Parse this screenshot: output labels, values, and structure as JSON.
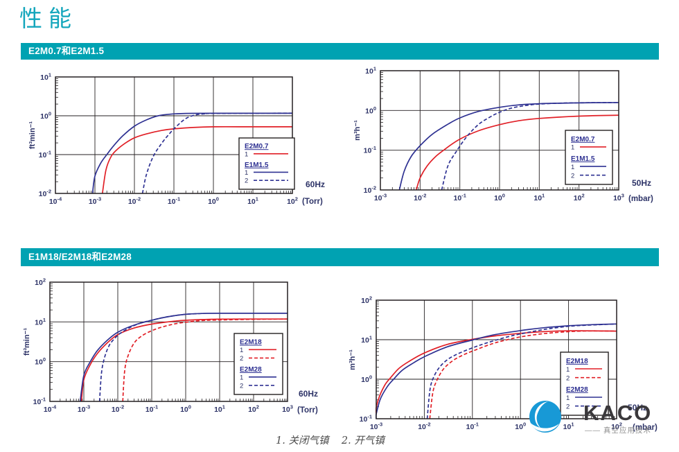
{
  "page": {
    "title": "性能",
    "footnote": "1. 关闭气镇    2. 开气镇"
  },
  "sections": [
    {
      "label": "E2M0.7和E2M1.5"
    },
    {
      "label": "E1M18/E2M18和E2M28"
    }
  ],
  "logo": {
    "text": "KACO",
    "subtitle": "—— 真空应用技术"
  },
  "colors": {
    "teal_bar": "#00a2b2",
    "title_teal": "#14a6bc",
    "curve_red": "#e11f26",
    "curve_blue": "#2e3192",
    "axis_ink": "#231f20",
    "grid": "#231f20",
    "label_navy": "#2d3367",
    "logo_blue": "#1899d6"
  },
  "chart_data": [
    {
      "id": "e2m07-e1m15-60hz",
      "type": "line",
      "section": "E2M0.7和E2M1.5",
      "frequency": "60Hz",
      "x_unit": "(Torr)",
      "ylabel": "ft³min⁻¹",
      "xexp": [
        -4,
        2
      ],
      "yexp": [
        -2,
        1
      ],
      "grid": true,
      "series": [
        {
          "label": "E2M0.7-1",
          "color": "red",
          "dash": false,
          "points": [
            [
              0.00155,
              0.01
            ],
            [
              0.0019,
              0.04
            ],
            [
              0.0025,
              0.085
            ],
            [
              0.0035,
              0.13
            ],
            [
              0.006,
              0.2
            ],
            [
              0.01,
              0.27
            ],
            [
              0.02,
              0.34
            ],
            [
              0.05,
              0.42
            ],
            [
              0.1,
              0.46
            ],
            [
              0.3,
              0.5
            ],
            [
              1,
              0.52
            ],
            [
              10,
              0.52
            ],
            [
              100,
              0.52
            ]
          ]
        },
        {
          "label": "E1M1.5-1",
          "color": "blue",
          "dash": false,
          "points": [
            [
              0.00087,
              0.01
            ],
            [
              0.001,
              0.028
            ],
            [
              0.0014,
              0.06
            ],
            [
              0.002,
              0.1
            ],
            [
              0.003,
              0.17
            ],
            [
              0.005,
              0.3
            ],
            [
              0.01,
              0.54
            ],
            [
              0.02,
              0.78
            ],
            [
              0.04,
              1.0
            ],
            [
              0.08,
              1.1
            ],
            [
              0.2,
              1.15
            ],
            [
              1,
              1.16
            ],
            [
              100,
              1.16
            ]
          ]
        },
        {
          "label": "E1M1.5-2",
          "color": "blue",
          "dash": true,
          "points": [
            [
              0.016,
              0.01
            ],
            [
              0.02,
              0.03
            ],
            [
              0.03,
              0.09
            ],
            [
              0.05,
              0.2
            ],
            [
              0.08,
              0.36
            ],
            [
              0.12,
              0.55
            ],
            [
              0.2,
              0.85
            ],
            [
              0.35,
              1.05
            ],
            [
              0.6,
              1.12
            ],
            [
              1,
              1.15
            ],
            [
              100,
              1.17
            ]
          ]
        }
      ],
      "legend": [
        {
          "title": "E2M0.7",
          "rows": [
            {
              "n": "1",
              "color": "red",
              "dash": false
            }
          ]
        },
        {
          "title": "E1M1.5",
          "rows": [
            {
              "n": "1",
              "color": "blue",
              "dash": false
            },
            {
              "n": "2",
              "color": "blue",
              "dash": true
            }
          ]
        }
      ]
    },
    {
      "id": "e2m07-e1m15-50hz",
      "type": "line",
      "section": "E2M0.7和E2M1.5",
      "frequency": "50Hz",
      "x_unit": "(mbar)",
      "ylabel": "m³h⁻¹",
      "xexp": [
        -3,
        3
      ],
      "yexp": [
        -2,
        1
      ],
      "grid": true,
      "series": [
        {
          "label": "E2M0.7-1",
          "color": "red",
          "dash": false,
          "points": [
            [
              0.008,
              0.01
            ],
            [
              0.01,
              0.02
            ],
            [
              0.015,
              0.04
            ],
            [
              0.025,
              0.07
            ],
            [
              0.05,
              0.12
            ],
            [
              0.1,
              0.19
            ],
            [
              0.3,
              0.31
            ],
            [
              1,
              0.44
            ],
            [
              3,
              0.55
            ],
            [
              10,
              0.63
            ],
            [
              100,
              0.72
            ],
            [
              1000,
              0.76
            ]
          ]
        },
        {
          "label": "E1M1.5-1",
          "color": "blue",
          "dash": false,
          "points": [
            [
              0.003,
              0.01
            ],
            [
              0.004,
              0.03
            ],
            [
              0.006,
              0.07
            ],
            [
              0.01,
              0.13
            ],
            [
              0.02,
              0.25
            ],
            [
              0.05,
              0.45
            ],
            [
              0.1,
              0.65
            ],
            [
              0.3,
              0.95
            ],
            [
              1,
              1.2
            ],
            [
              3,
              1.38
            ],
            [
              10,
              1.48
            ],
            [
              100,
              1.55
            ],
            [
              1000,
              1.58
            ]
          ]
        },
        {
          "label": "E1M1.5-2",
          "color": "blue",
          "dash": true,
          "points": [
            [
              0.035,
              0.01
            ],
            [
              0.05,
              0.04
            ],
            [
              0.08,
              0.09
            ],
            [
              0.15,
              0.22
            ],
            [
              0.3,
              0.45
            ],
            [
              0.6,
              0.7
            ],
            [
              1,
              0.9
            ],
            [
              2,
              1.15
            ],
            [
              5,
              1.35
            ],
            [
              10,
              1.45
            ],
            [
              30,
              1.52
            ],
            [
              100,
              1.56
            ],
            [
              1000,
              1.58
            ]
          ]
        }
      ],
      "legend": [
        {
          "title": "E2M0.7",
          "rows": [
            {
              "n": "1",
              "color": "red",
              "dash": false
            }
          ]
        },
        {
          "title": "E1M1.5",
          "rows": [
            {
              "n": "1",
              "color": "blue",
              "dash": false
            },
            {
              "n": "2",
              "color": "blue",
              "dash": true
            }
          ]
        }
      ]
    },
    {
      "id": "e2m18-e2m28-60hz",
      "type": "line",
      "section": "E1M18/E2M18和E2M28",
      "frequency": "60Hz",
      "x_unit": "(Torr)",
      "ylabel": "ft³min⁻¹",
      "xexp": [
        -4,
        3
      ],
      "yexp": [
        -1,
        2
      ],
      "grid": true,
      "series": [
        {
          "label": "E2M18-1",
          "color": "red",
          "dash": false,
          "points": [
            [
              0.00085,
              0.1
            ],
            [
              0.001,
              0.35
            ],
            [
              0.0015,
              0.8
            ],
            [
              0.0025,
              1.6
            ],
            [
              0.005,
              3.0
            ],
            [
              0.01,
              4.8
            ],
            [
              0.03,
              7.0
            ],
            [
              0.1,
              8.8
            ],
            [
              0.3,
              10.0
            ],
            [
              1,
              11.0
            ],
            [
              10,
              11.7
            ],
            [
              100,
              11.8
            ],
            [
              1000,
              11.8
            ]
          ]
        },
        {
          "label": "E2M28-1",
          "color": "blue",
          "dash": false,
          "points": [
            [
              0.00078,
              0.1
            ],
            [
              0.001,
              0.45
            ],
            [
              0.0015,
              0.95
            ],
            [
              0.0025,
              1.9
            ],
            [
              0.005,
              3.5
            ],
            [
              0.01,
              5.5
            ],
            [
              0.03,
              8.3
            ],
            [
              0.1,
              11.0
            ],
            [
              0.3,
              13.5
            ],
            [
              1,
              15.5
            ],
            [
              3,
              16.3
            ],
            [
              10,
              16.5
            ],
            [
              1000,
              16.5
            ]
          ]
        },
        {
          "label": "E2M28-2",
          "color": "blue",
          "dash": true,
          "points": [
            [
              0.0029,
              0.1
            ],
            [
              0.0033,
              0.5
            ],
            [
              0.004,
              1.2
            ],
            [
              0.0055,
              2.5
            ],
            [
              0.008,
              3.8
            ],
            [
              0.012,
              5.2
            ],
            [
              0.025,
              7.5
            ],
            [
              0.05,
              9.5
            ],
            [
              0.1,
              11.0
            ],
            [
              0.2,
              12.7
            ],
            [
              0.5,
              14.5
            ],
            [
              1,
              15.5
            ],
            [
              3,
              16.3
            ]
          ]
        },
        {
          "label": "E2M18-2",
          "color": "red",
          "dash": true,
          "points": [
            [
              0.014,
              0.1
            ],
            [
              0.016,
              0.6
            ],
            [
              0.02,
              1.4
            ],
            [
              0.03,
              2.9
            ],
            [
              0.05,
              4.4
            ],
            [
              0.1,
              6.0
            ],
            [
              0.2,
              7.4
            ],
            [
              0.5,
              9.0
            ],
            [
              1,
              9.8
            ],
            [
              3,
              10.8
            ],
            [
              10,
              11.2
            ],
            [
              100,
              11.6
            ],
            [
              1000,
              11.8
            ]
          ]
        }
      ],
      "legend": [
        {
          "title": "E2M18",
          "rows": [
            {
              "n": "1",
              "color": "red",
              "dash": false
            },
            {
              "n": "2",
              "color": "red",
              "dash": true
            }
          ]
        },
        {
          "title": "E2M28",
          "rows": [
            {
              "n": "1",
              "color": "blue",
              "dash": false
            },
            {
              "n": "2",
              "color": "blue",
              "dash": true
            }
          ]
        }
      ]
    },
    {
      "id": "e2m18-e2m28-50hz",
      "type": "line",
      "section": "E1M18/E2M18和E2M28",
      "frequency": "50Hz",
      "x_unit": "(mbar)",
      "ylabel": "m³h⁻¹",
      "xexp": [
        -3,
        2
      ],
      "yexp": [
        -1,
        2
      ],
      "grid": true,
      "series": [
        {
          "label": "E2M18-1",
          "color": "red",
          "dash": false,
          "points": [
            [
              0.0009,
              0.1
            ],
            [
              0.0011,
              0.3
            ],
            [
              0.0015,
              0.7
            ],
            [
              0.002,
              1.1
            ],
            [
              0.003,
              1.9
            ],
            [
              0.005,
              2.9
            ],
            [
              0.01,
              4.6
            ],
            [
              0.03,
              7.6
            ],
            [
              0.1,
              10.2
            ],
            [
              0.3,
              12.5
            ],
            [
              1,
              14.5
            ],
            [
              3,
              16.0
            ],
            [
              10,
              16.8
            ],
            [
              100,
              16.5
            ]
          ]
        },
        {
          "label": "E2M28-1",
          "color": "blue",
          "dash": false,
          "points": [
            [
              0.00095,
              0.1
            ],
            [
              0.0012,
              0.3
            ],
            [
              0.0017,
              0.65
            ],
            [
              0.0023,
              1.0
            ],
            [
              0.0035,
              1.7
            ],
            [
              0.006,
              2.6
            ],
            [
              0.01,
              3.7
            ],
            [
              0.03,
              6.6
            ],
            [
              0.1,
              9.8
            ],
            [
              0.3,
              13.5
            ],
            [
              1,
              17.0
            ],
            [
              3,
              20.0
            ],
            [
              10,
              22.5
            ],
            [
              30,
              24.0
            ],
            [
              100,
              25.0
            ]
          ]
        },
        {
          "label": "E2M28-2",
          "color": "blue",
          "dash": true,
          "points": [
            [
              0.0115,
              0.1
            ],
            [
              0.013,
              0.5
            ],
            [
              0.015,
              1.0
            ],
            [
              0.02,
              1.9
            ],
            [
              0.03,
              3.1
            ],
            [
              0.05,
              4.4
            ],
            [
              0.1,
              6.2
            ],
            [
              0.2,
              8.3
            ],
            [
              0.5,
              11.5
            ],
            [
              1,
              14.0
            ],
            [
              3,
              18.0
            ],
            [
              10,
              21.8
            ],
            [
              30,
              23.5
            ],
            [
              100,
              25.0
            ]
          ]
        },
        {
          "label": "E2M18-2",
          "color": "red",
          "dash": true,
          "points": [
            [
              0.013,
              0.1
            ],
            [
              0.015,
              0.45
            ],
            [
              0.018,
              0.9
            ],
            [
              0.025,
              1.8
            ],
            [
              0.04,
              3.0
            ],
            [
              0.07,
              4.3
            ],
            [
              0.12,
              5.6
            ],
            [
              0.25,
              7.8
            ],
            [
              0.5,
              9.8
            ],
            [
              1,
              11.8
            ],
            [
              3,
              14.2
            ],
            [
              10,
              16.0
            ],
            [
              30,
              16.7
            ],
            [
              100,
              16.5
            ]
          ]
        }
      ],
      "legend": [
        {
          "title": "E2M18",
          "rows": [
            {
              "n": "1",
              "color": "red",
              "dash": false
            },
            {
              "n": "2",
              "color": "red",
              "dash": true
            }
          ]
        },
        {
          "title": "E2M28",
          "rows": [
            {
              "n": "1",
              "color": "blue",
              "dash": false
            },
            {
              "n": "2",
              "color": "blue",
              "dash": true
            }
          ]
        }
      ]
    }
  ]
}
